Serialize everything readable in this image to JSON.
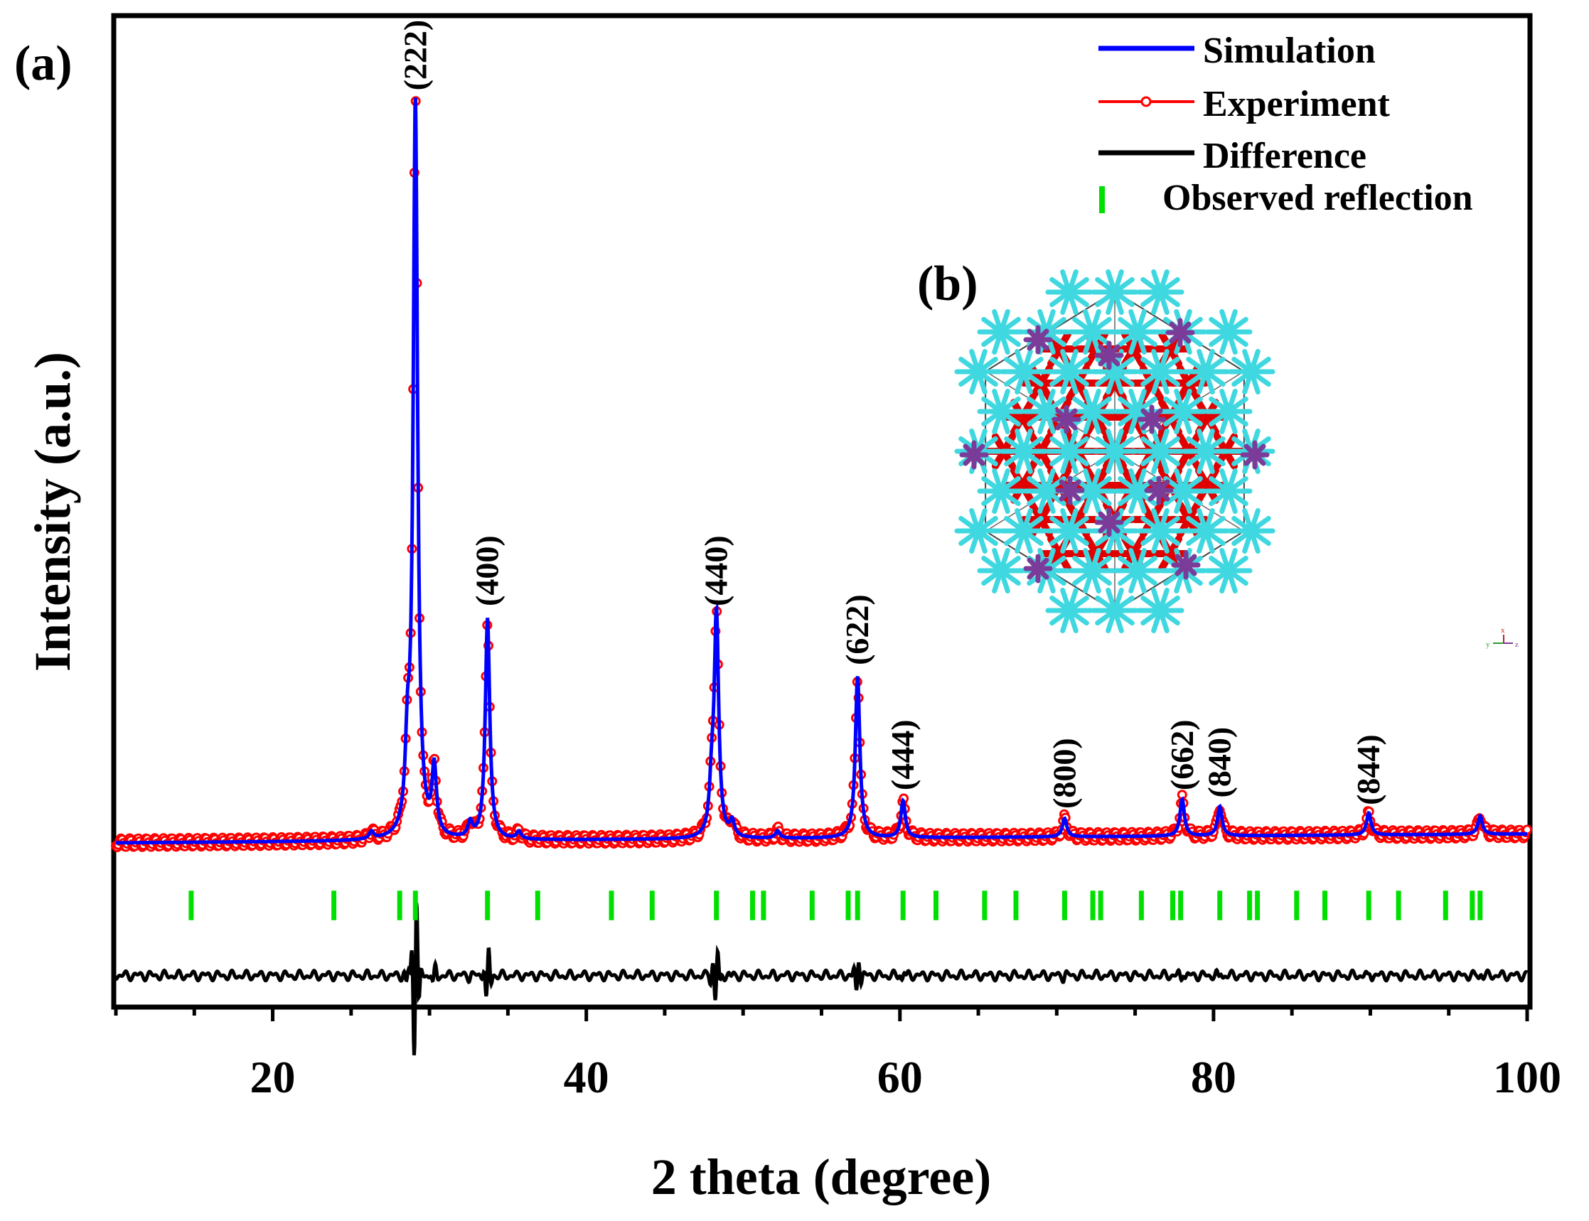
{
  "colors": {
    "simulation": "#0000ff",
    "experiment": "#ff0000",
    "difference": "#000000",
    "reflection": "#00e000",
    "atom_cyan": "#40d8e0",
    "atom_red": "#e00000",
    "atom_purple": "#7a3c98"
  },
  "chart_data": {
    "type": "line",
    "title": "",
    "xlabel": "2 theta (degree)",
    "ylabel": "Intensity (a.u.)",
    "xlim": [
      10,
      100
    ],
    "ylim": [
      -0.22,
      1.12
    ],
    "xticks": [
      20,
      40,
      60,
      80,
      100
    ],
    "xtick_labels": [
      "20",
      "40",
      "60",
      "80",
      "100"
    ],
    "baseline": 0.0,
    "difference_offset": -0.18,
    "peaks": [
      {
        "label": "(222)",
        "x": 29.1,
        "intensity": 1.0
      },
      {
        "label": "(400)",
        "x": 33.7,
        "intensity": 0.3
      },
      {
        "label": "(440)",
        "x": 48.3,
        "intensity": 0.3
      },
      {
        "label": "(622)",
        "x": 57.3,
        "intensity": 0.22
      },
      {
        "label": "(444)",
        "x": 60.2,
        "intensity": 0.05
      },
      {
        "label": "(800)",
        "x": 70.5,
        "intensity": 0.025
      },
      {
        "label": "(662)",
        "x": 78.0,
        "intensity": 0.05
      },
      {
        "label": "(840)",
        "x": 80.4,
        "intensity": 0.04
      },
      {
        "label": "(844)",
        "x": 89.9,
        "intensity": 0.03
      }
    ],
    "minor_peaks": [
      {
        "x": 26.3,
        "intensity": 0.01
      },
      {
        "x": 28.6,
        "intensity": 0.1
      },
      {
        "x": 30.3,
        "intensity": 0.09
      },
      {
        "x": 32.6,
        "intensity": 0.02
      },
      {
        "x": 35.7,
        "intensity": 0.01
      },
      {
        "x": 48.0,
        "intensity": 0.06
      },
      {
        "x": 49.3,
        "intensity": 0.02
      },
      {
        "x": 52.2,
        "intensity": 0.01
      },
      {
        "x": 97.0,
        "intensity": 0.025
      }
    ],
    "series": [
      {
        "name": "Simulation",
        "style": "line"
      },
      {
        "name": "Experiment",
        "style": "line-open-circle"
      },
      {
        "name": "Difference",
        "style": "line"
      },
      {
        "name": "Observed reflection",
        "style": "tick"
      }
    ],
    "reflection_positions": [
      14.8,
      23.9,
      28.1,
      29.1,
      33.7,
      36.9,
      41.6,
      44.2,
      48.3,
      50.6,
      51.3,
      54.4,
      56.7,
      57.3,
      60.2,
      62.3,
      65.4,
      67.4,
      70.5,
      72.3,
      72.8,
      75.4,
      77.4,
      77.9,
      80.4,
      82.3,
      82.8,
      85.3,
      87.1,
      89.9,
      91.8,
      94.8,
      96.5,
      97.0
    ],
    "legend_position": "top-right",
    "panel_labels": {
      "a": "(a)",
      "b": "(b)"
    },
    "inset": {
      "description": "crystal structure",
      "axes_labels": [
        "y",
        "x",
        "z"
      ]
    }
  }
}
